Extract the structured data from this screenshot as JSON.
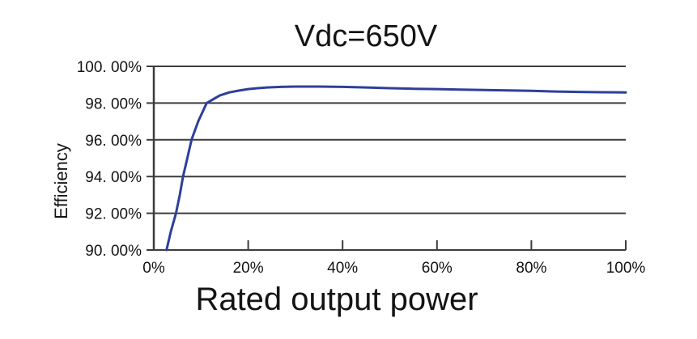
{
  "chart_data": {
    "type": "line",
    "title": "Vdc=650V",
    "xlabel": "Rated output power",
    "ylabel": "Efficiency",
    "xlim": [
      0,
      100
    ],
    "ylim": [
      90,
      100
    ],
    "x_ticks": [
      0,
      20,
      40,
      60,
      80,
      100
    ],
    "x_tick_labels": [
      "0%",
      "20%",
      "40%",
      "60%",
      "80%",
      "100%"
    ],
    "y_ticks": [
      90,
      92,
      94,
      96,
      98,
      100
    ],
    "y_tick_labels": [
      "90. 00%",
      "92. 00%",
      "94. 00%",
      "96. 00%",
      "98. 00%",
      "100. 00%"
    ],
    "grid": "horizontal",
    "legend": "none",
    "series": [
      {
        "name": "efficiency-curve",
        "color": "#2e3f9a",
        "x": [
          2.7,
          3.6,
          4.7,
          5.5,
          6.2,
          7.1,
          8.0,
          9.4,
          11.2,
          12.5,
          14,
          16,
          18,
          20,
          22,
          24,
          27,
          30,
          35,
          40,
          45,
          50,
          55,
          60,
          65,
          70,
          75,
          80,
          85,
          90,
          95,
          100
        ],
        "y": [
          90.0,
          91.0,
          92.0,
          93.0,
          94.0,
          95.0,
          96.0,
          97.0,
          98.0,
          98.2,
          98.42,
          98.58,
          98.68,
          98.76,
          98.81,
          98.85,
          98.88,
          98.9,
          98.9,
          98.88,
          98.85,
          98.81,
          98.78,
          98.76,
          98.73,
          98.71,
          98.69,
          98.67,
          98.63,
          98.61,
          98.59,
          98.58
        ]
      }
    ]
  },
  "colors": {
    "line": "#2e3f9a",
    "grid": "#3c3c3c",
    "axis": "#3c3c3c",
    "text": "#141414",
    "background": "#ffffff"
  }
}
